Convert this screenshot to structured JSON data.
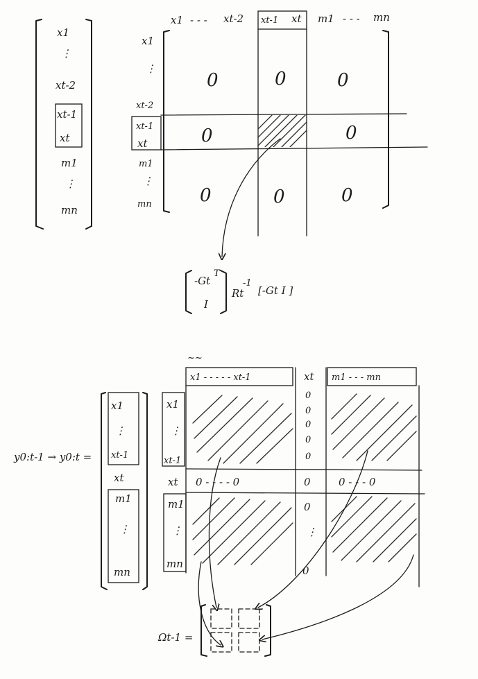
{
  "top": {
    "state_vector": [
      "x1",
      "⋮",
      "xt-2",
      "xt-1",
      "xt",
      "m1",
      "⋮",
      "mn"
    ],
    "col_headers": [
      "x1",
      "- - -",
      "xt-2",
      "xt-1",
      "xt",
      "m1",
      "- - -",
      "mn"
    ],
    "row_headers": [
      "x1",
      "⋮",
      "xt-2",
      "xt-1",
      "xt",
      "m1",
      "⋮",
      "mn"
    ],
    "zero": "0",
    "formula": {
      "vec_top": "-Gt",
      "vec_top_sup": "T",
      "vec_bottom": "I",
      "middle": "Rt",
      "middle_sup": "-1",
      "tail": "[-Gt   I ]"
    }
  },
  "bottom": {
    "scribble": "~~",
    "transition": "y0:t-1 → y0:t =",
    "state_vector": [
      "x1",
      "⋮",
      "xt-1",
      "xt",
      "m1",
      "⋮",
      "mn"
    ],
    "col_group_1": "x1 - - - - - xt-1",
    "col_xt": "xt",
    "col_group_2": "m1 - - - mn",
    "row_headers": [
      "x1",
      "⋮",
      "xt-1",
      "xt",
      "m1",
      "⋮",
      "mn"
    ],
    "zero": "0",
    "xt_row_zeros": [
      "0 - - - - 0",
      "0",
      "0 - - - 0"
    ],
    "omega_label": "Ωt-1 ="
  },
  "colors": {
    "ink": "#1c1c1c",
    "paper": "#fdfdfc"
  }
}
